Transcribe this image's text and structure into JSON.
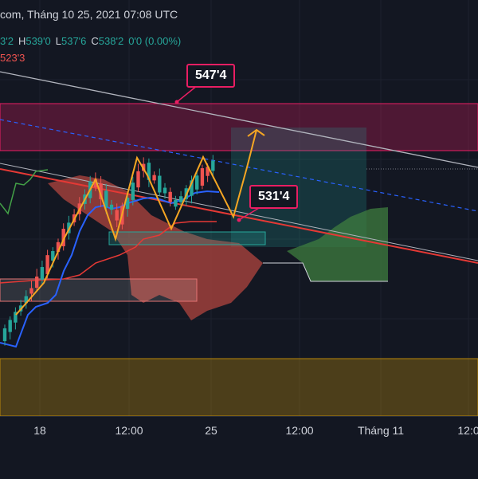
{
  "header": {
    "title_fragment": "com, Tháng 10 25, 2021 07:08 UTC",
    "ohlc": [
      {
        "k": "",
        "v": "3'2"
      },
      {
        "k": "H",
        "v": "539'0"
      },
      {
        "k": "L",
        "v": "537'6"
      },
      {
        "k": "C",
        "v": "538'2"
      },
      {
        "k": "",
        "v": "0'0 (0.00%)"
      }
    ],
    "indicator_value": "523'3"
  },
  "annotations": {
    "top_label": "547'4",
    "bottom_label": "531'4"
  },
  "chart_data": {
    "type": "candlestick",
    "title": "",
    "x_ticks": [
      "18",
      "12:00",
      "25",
      "12:00",
      "Tháng 11",
      "12:0"
    ],
    "price_labels": [
      "547'4",
      "531'4"
    ],
    "colors": {
      "bull": "#26a69a",
      "bear": "#ef5350",
      "zigzag": "#f5a623",
      "conversion_line": "#2962ff",
      "base_line": "#e53935",
      "lagging_line": "#43a047",
      "cloud_bear": "#b2453f",
      "cloud_bull": "#3f7d3f",
      "resistance_zone": "#e91e63",
      "support_zone": "#b8860b",
      "channel_upper": "#b2b5be",
      "channel_lower": "#e53935",
      "channel_mid": "#2962ff"
    },
    "candles_approx_count": 40
  }
}
